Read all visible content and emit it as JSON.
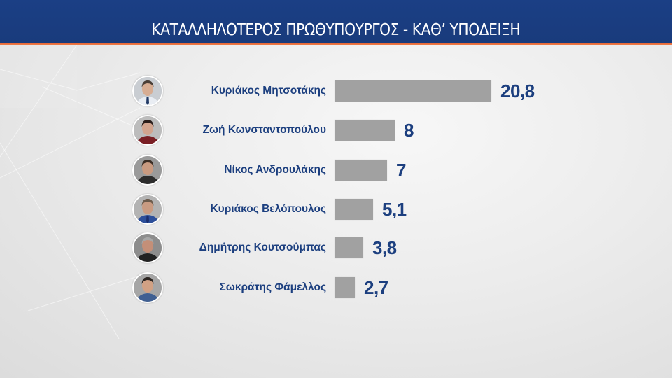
{
  "header": {
    "title": "ΚΑΤΑΛΛΗΛΟΤΕΡΟΣ ΠΡΩΘΥΠΟΥΡΓΟΣ - ΚΑΘ’ ΥΠΟΔΕΙΞΗ",
    "bg_color": "#1b3f85",
    "stripe_color": "#e5592a"
  },
  "colors": {
    "text": "#1c3f7f",
    "bar": "#a1a1a1"
  },
  "rows": [
    {
      "name": "Κυριάκος Μητσοτάκης",
      "value": "20,8",
      "avatar": "avatar-photo"
    },
    {
      "name": "Ζωή Κωνσταντοπούλου",
      "value": "8",
      "avatar": "avatar-photo"
    },
    {
      "name": "Νίκος Ανδρουλάκης",
      "value": "7",
      "avatar": "avatar-photo"
    },
    {
      "name": "Κυριάκος Βελόπουλος",
      "value": "5,1",
      "avatar": "avatar-photo"
    },
    {
      "name": "Δημήτρης Κουτσούμπας",
      "value": "3,8",
      "avatar": "avatar-photo"
    },
    {
      "name": "Σωκράτης Φάμελλος",
      "value": "2,7",
      "avatar": "avatar-photo"
    }
  ],
  "chart_data": {
    "type": "bar",
    "orientation": "horizontal",
    "title": "ΚΑΤΑΛΛΗΛΟΤΕΡΟΣ ΠΡΩΘΥΠΟΥΡΓΟΣ - ΚΑΘ’ ΥΠΟΔΕΙΞΗ",
    "categories": [
      "Κυριάκος Μητσοτάκης",
      "Ζωή Κωνσταντοπούλου",
      "Νίκος Ανδρουλάκης",
      "Κυριάκος Βελόπουλος",
      "Δημήτρης Κουτσούμπας",
      "Σωκράτης Φάμελλος"
    ],
    "values": [
      20.8,
      8,
      7,
      5.1,
      3.8,
      2.7
    ],
    "value_labels": [
      "20,8",
      "8",
      "7",
      "5,1",
      "3,8",
      "2,7"
    ],
    "xlabel": "",
    "ylabel": "",
    "grid": false,
    "legend": null
  }
}
